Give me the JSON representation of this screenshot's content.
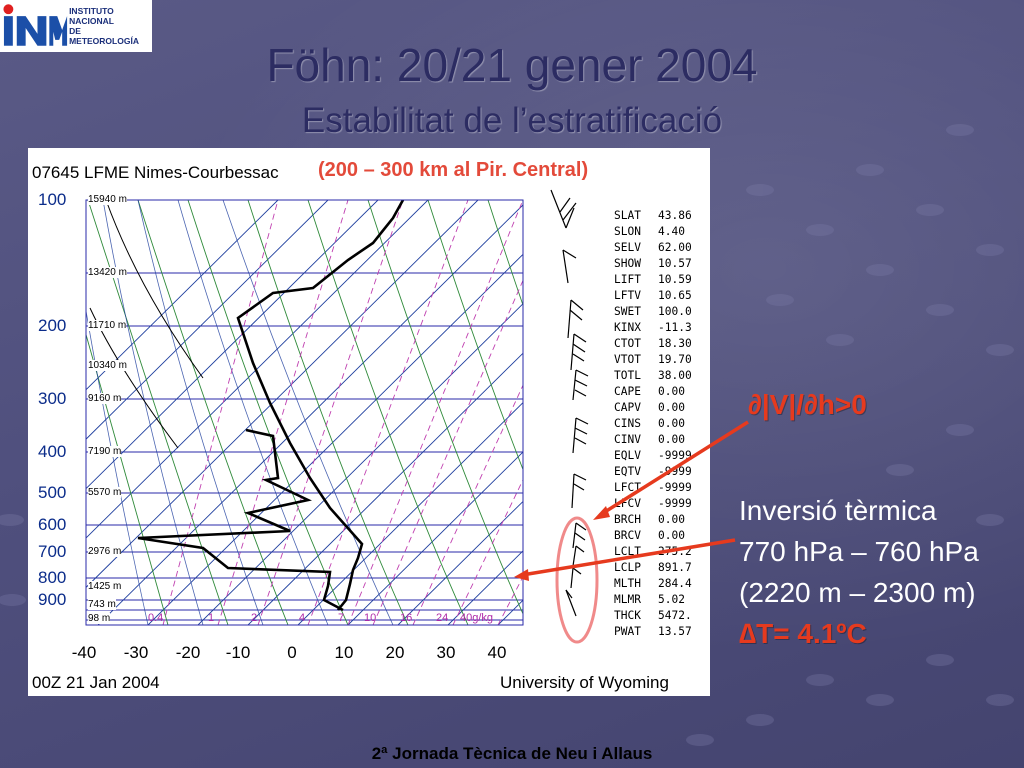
{
  "logo": {
    "line1": "INSTITUTO",
    "line2": "NACIONAL",
    "line3": "DE METEOROLOGÍA"
  },
  "title": "Föhn: 20/21 gener 2004",
  "subtitle": "Estabilitat de l’estratificació",
  "sounding": {
    "station": "07645 LFME Nimes-Courbessac",
    "region_note": "(200 – 300 km al Pir. Central)",
    "date": "00Z 21 Jan 2004",
    "source": "University of Wyoming",
    "pressure_labels": [
      "100",
      "200",
      "300",
      "400",
      "500",
      "600",
      "700",
      "800",
      "900"
    ],
    "height_labels": [
      "15940 m",
      "13420 m",
      "11710 m",
      "10340 m",
      "9160 m",
      "7190 m",
      "5570 m",
      "2976 m",
      "1425 m",
      "743 m",
      "98 m"
    ],
    "temp_labels": [
      "-40",
      "-30",
      "-20",
      "-10",
      "0",
      "10",
      "20",
      "30",
      "40"
    ],
    "mixing_labels": [
      "0.4",
      "1",
      "2",
      "4",
      "7",
      "10",
      "16",
      "24",
      "40g/kg"
    ],
    "indices": [
      {
        "k": "SLAT",
        "v": "43.86"
      },
      {
        "k": "SLON",
        "v": "4.40"
      },
      {
        "k": "SELV",
        "v": "62.00"
      },
      {
        "k": "SHOW",
        "v": "10.57"
      },
      {
        "k": "LIFT",
        "v": "10.59"
      },
      {
        "k": "LFTV",
        "v": "10.65"
      },
      {
        "k": "SWET",
        "v": "100.0"
      },
      {
        "k": "KINX",
        "v": "-11.3"
      },
      {
        "k": "CTOT",
        "v": "18.30"
      },
      {
        "k": "VTOT",
        "v": "19.70"
      },
      {
        "k": "TOTL",
        "v": "38.00"
      },
      {
        "k": "CAPE",
        "v": "0.00"
      },
      {
        "k": "CAPV",
        "v": "0.00"
      },
      {
        "k": "CINS",
        "v": "0.00"
      },
      {
        "k": "CINV",
        "v": "0.00"
      },
      {
        "k": "EQLV",
        "v": "-9999"
      },
      {
        "k": "EQTV",
        "v": "-9999"
      },
      {
        "k": "LFCT",
        "v": "-9999"
      },
      {
        "k": "LFCV",
        "v": "-9999"
      },
      {
        "k": "BRCH",
        "v": "0.00"
      },
      {
        "k": "BRCV",
        "v": "0.00"
      },
      {
        "k": "LCLT",
        "v": "275.2"
      },
      {
        "k": "LCLP",
        "v": "891.7"
      },
      {
        "k": "MLTH",
        "v": "284.4"
      },
      {
        "k": "MLMR",
        "v": "5.02"
      },
      {
        "k": "THCK",
        "v": "5472."
      },
      {
        "k": "PWAT",
        "v": "13.57"
      }
    ]
  },
  "annotations": {
    "shear": "∂|V|/∂h>0",
    "inv_title": "Inversió tèrmica",
    "inv_press": "770 hPa – 760 hPa",
    "inv_height": "(2220 m – 2300 m)",
    "inv_delta": "∆T= 4.1ºC"
  },
  "colors": {
    "arrow": "#e63a1e",
    "ellipse": "#f08a8a",
    "isobar": "#2a2aa8",
    "isotherm": "#1f3f9e",
    "dry_adiabat": "#2f8a3a",
    "mixing_ratio": "#c040b0"
  },
  "footer": "2ª Jornada Tècnica de Neu i Allaus"
}
